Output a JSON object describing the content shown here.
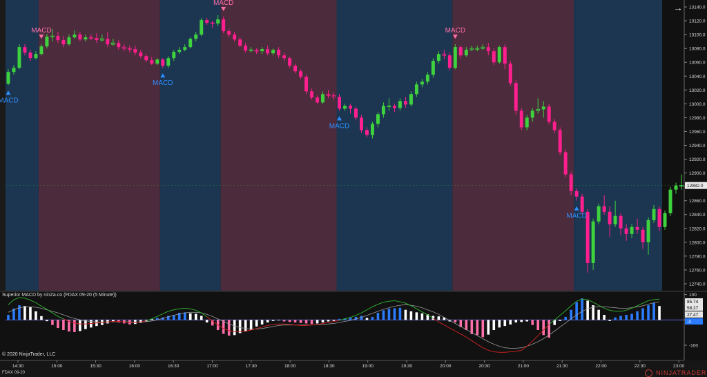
{
  "colors": {
    "background": "#111111",
    "bullish_band": "#1c3550",
    "bearish_band": "#4c2b3c",
    "up_candle": "#3ed33e",
    "down_candle": "#ff1f8e",
    "up_arrow": "#2f8fff",
    "down_arrow": "#ff6fa9",
    "hist_up_strong": "#2b7cff",
    "hist_up_weak": "#ffffff",
    "hist_down_strong": "#ff6fa9",
    "hist_down_weak": "#ffffff",
    "macd_line_up": "#2ea82e",
    "macd_line_down": "#c81f1f",
    "signal_line": "#9a9a9a",
    "zero_line": "#5b64c9"
  },
  "price_panel": {
    "price_labels": [
      "13140.0",
      "13120.0",
      "13100.0",
      "13080.0",
      "13060.0",
      "13040.0",
      "13020.0",
      "13000.0",
      "12980.0",
      "12960.0",
      "12940.0",
      "12920.0",
      "12900.0",
      "12880.0",
      "12860.0",
      "12840.0",
      "12820.0",
      "12800.0",
      "12780.0",
      "12760.0",
      "12740.0"
    ],
    "current_price": "12882.0",
    "signal_label": "MACD"
  },
  "indicator_panel": {
    "title": "Superior MACD by ninZa.co (FDAX 09-20 (5 Minute))",
    "value_labels": [
      "85.74",
      "58.27",
      "27.47",
      "-3"
    ],
    "axis_labels": [
      "100",
      "0",
      "-100"
    ]
  },
  "time_labels": [
    "14:30",
    "15:00",
    "15:30",
    "16:00",
    "16:30",
    "17:00",
    "17:30",
    "18:00",
    "18:30",
    "19:00",
    "19:30",
    "20:00",
    "20:30",
    "21:00",
    "21:30",
    "22:00",
    "22:30",
    "23:00"
  ],
  "copyright": "© 2020 NinjaTrader, LLC",
  "instrument": "FDAX 09-20",
  "brand": "NINJATRADER",
  "chart_data": {
    "type": "candlestick",
    "title": "",
    "instrument": "FDAX 09-20",
    "interval": "5 Minute",
    "x": [
      "14:30",
      "15:00",
      "15:30",
      "16:00",
      "16:30",
      "17:00",
      "17:30",
      "18:00",
      "18:30",
      "19:00",
      "19:30",
      "20:00",
      "20:30",
      "21:00",
      "21:30",
      "22:00",
      "22:30",
      "23:00"
    ],
    "ylim": [
      12730,
      13150
    ],
    "current_price": 12882.0,
    "candles": [
      [
        "13029",
        "13046",
        "13050",
        "13027"
      ],
      [
        "13046",
        "13052",
        "13056",
        "13042"
      ],
      [
        "13052",
        "13082",
        "13086",
        "13050"
      ],
      [
        "13082",
        "13074",
        "13086",
        "13070"
      ],
      [
        "13074",
        "13066",
        "13078",
        "13062"
      ],
      [
        "13066",
        "13072",
        "13076",
        "13064"
      ],
      [
        "13072",
        "13083",
        "13086",
        "13070"
      ],
      [
        "13083",
        "13097",
        "13101",
        "13080"
      ],
      [
        "13097",
        "13098",
        "13108",
        "13090"
      ],
      [
        "13098",
        "13092",
        "13104",
        "13088"
      ],
      [
        "13092",
        "13086",
        "13098",
        "13082"
      ],
      [
        "13086",
        "13096",
        "13100",
        "13084"
      ],
      [
        "13096",
        "13100",
        "13106",
        "13094"
      ],
      [
        "13100",
        "13093",
        "13104",
        "13090"
      ],
      [
        "13093",
        "13096",
        "13100",
        "13090"
      ],
      [
        "13096",
        "13095",
        "13100",
        "13092"
      ],
      [
        "13095",
        "13092",
        "13102",
        "13088"
      ],
      [
        "13092",
        "13094",
        "13100",
        "13090"
      ],
      [
        "13094",
        "13086",
        "13104",
        "13082"
      ],
      [
        "13086",
        "13088",
        "13094",
        "13084"
      ],
      [
        "13088",
        "13082",
        "13092",
        "13078"
      ],
      [
        "13082",
        "13080",
        "13086",
        "13076"
      ],
      [
        "13080",
        "13079",
        "13084",
        "13074"
      ],
      [
        "13079",
        "13074",
        "13084",
        "13070"
      ],
      [
        "13074",
        "13069",
        "13078",
        "13066"
      ],
      [
        "13069",
        "13063",
        "13072",
        "13060"
      ],
      [
        "13063",
        "13058",
        "13068",
        "13056"
      ],
      [
        "13058",
        "13064",
        "13066",
        "13056"
      ],
      [
        "13064",
        "13055",
        "13066",
        "13052"
      ],
      [
        "13055",
        "13066",
        "13069",
        "13052"
      ],
      [
        "13066",
        "13075",
        "13078",
        "13062"
      ],
      [
        "13075",
        "13078",
        "13082",
        "13072"
      ],
      [
        "13078",
        "13082",
        "13086",
        "13076"
      ],
      [
        "13082",
        "13094",
        "13096",
        "13080"
      ],
      [
        "13094",
        "13100",
        "13104",
        "13090"
      ],
      [
        "13100",
        "13121",
        "13124",
        "13098"
      ],
      [
        "13121",
        "13117",
        "13124",
        "13114"
      ],
      [
        "13117",
        "13116",
        "13120",
        "13110"
      ],
      [
        "13116",
        "13122",
        "13128",
        "13112"
      ],
      [
        "13122",
        "13105",
        "13126",
        "13102"
      ],
      [
        "13105",
        "13100",
        "13108",
        "13096"
      ],
      [
        "13100",
        "13093",
        "13104",
        "13090"
      ],
      [
        "13093",
        "13084",
        "13096",
        "13082"
      ],
      [
        "13084",
        "13077",
        "13088",
        "13074"
      ],
      [
        "13077",
        "13078",
        "13082",
        "13074"
      ],
      [
        "13078",
        "13076",
        "13080",
        "13072"
      ],
      [
        "13076",
        "13079",
        "13082",
        "13072"
      ],
      [
        "13079",
        "13073",
        "13084",
        "13070"
      ],
      [
        "13073",
        "13078",
        "13080",
        "13070"
      ],
      [
        "13078",
        "13070",
        "13082",
        "13066"
      ],
      [
        "13070",
        "13066",
        "13074",
        "13062"
      ],
      [
        "13066",
        "13055",
        "13068",
        "13052"
      ],
      [
        "13055",
        "13047",
        "13058",
        "13044"
      ],
      [
        "13047",
        "13039",
        "13050",
        "13036"
      ],
      [
        "13039",
        "13018",
        "13042",
        "13014"
      ],
      [
        "13018",
        "13009",
        "13022",
        "13006"
      ],
      [
        "13009",
        "13002",
        "13012",
        "13000"
      ],
      [
        "13002",
        "13014",
        "13018",
        "13000"
      ],
      [
        "13014",
        "13012",
        "13020",
        "13008"
      ],
      [
        "13012",
        "13010",
        "13016",
        "13006"
      ],
      [
        "13010",
        "12993",
        "13014",
        "12990"
      ],
      [
        "12993",
        "12997",
        "13000",
        "12990"
      ],
      [
        "12997",
        "12993",
        "13000",
        "12986"
      ],
      [
        "12993",
        "12980",
        "12996",
        "12976"
      ],
      [
        "12980",
        "12962",
        "12984",
        "12958"
      ],
      [
        "12962",
        "12955",
        "12966",
        "12952"
      ],
      [
        "12955",
        "12971",
        "12974",
        "12950"
      ],
      [
        "12971",
        "12985",
        "12988",
        "12966"
      ],
      [
        "12985",
        "12997",
        "13002",
        "12980"
      ],
      [
        "12997",
        "12997",
        "13008",
        "12990"
      ],
      [
        "12997",
        "12994",
        "13000",
        "12988"
      ],
      [
        "12994",
        "13004",
        "13008",
        "12990"
      ],
      [
        "13004",
        "12999",
        "13010",
        "12994"
      ],
      [
        "12999",
        "13014",
        "13018",
        "12996"
      ],
      [
        "13014",
        "13028",
        "13032",
        "13010"
      ],
      [
        "13028",
        "13032",
        "13036",
        "13024"
      ],
      [
        "13032",
        "13042",
        "13046",
        "13028"
      ],
      [
        "13042",
        "13062",
        "13066",
        "13038"
      ],
      [
        "13062",
        "13072",
        "13076",
        "13058"
      ],
      [
        "13072",
        "13070",
        "13078",
        "13064"
      ],
      [
        "13070",
        "13052",
        "13074",
        "13048"
      ],
      [
        "13052",
        "13082",
        "13086",
        "13050"
      ],
      [
        "13082",
        "13070",
        "13084",
        "13066"
      ],
      [
        "13070",
        "13078",
        "13082",
        "13068"
      ],
      [
        "13078",
        "13080",
        "13084",
        "13076"
      ],
      [
        "13080",
        "13080",
        "13084",
        "13076"
      ],
      [
        "13080",
        "13082",
        "13086",
        "13078"
      ],
      [
        "13082",
        "13076",
        "13088",
        "13070"
      ],
      [
        "13076",
        "13060",
        "13080",
        "13056"
      ],
      [
        "13060",
        "13082",
        "13084",
        "13058"
      ],
      [
        "13082",
        "13058",
        "13086",
        "13050"
      ],
      [
        "13058",
        "13030",
        "13062",
        "13026"
      ],
      [
        "13030",
        "12990",
        "13034",
        "12984"
      ],
      [
        "12990",
        "12966",
        "12994",
        "12962"
      ],
      [
        "12966",
        "12980",
        "12984",
        "12962"
      ],
      [
        "12980",
        "12990",
        "12994",
        "12974"
      ],
      [
        "12990",
        "12992",
        "13008",
        "12986"
      ],
      [
        "12992",
        "12996",
        "13004",
        "12980"
      ],
      [
        "12996",
        "12974",
        "13000",
        "12970"
      ],
      [
        "12974",
        "12962",
        "12978",
        "12958"
      ],
      [
        "12962",
        "12930",
        "12966",
        "12926"
      ],
      [
        "12930",
        "12898",
        "12934",
        "12894"
      ],
      [
        "12898",
        "12874",
        "12902",
        "12868"
      ],
      [
        "12874",
        "12866",
        "12878",
        "12860"
      ],
      [
        "12866",
        "12844",
        "12870",
        "12840"
      ],
      [
        "12844",
        "12770",
        "12848",
        "12756"
      ],
      [
        "12770",
        "12830",
        "12834",
        "12760"
      ],
      [
        "12830",
        "12852",
        "12856",
        "12826"
      ],
      [
        "12852",
        "12844",
        "12868",
        "12840"
      ],
      [
        "12844",
        "12826",
        "12852",
        "12808"
      ],
      [
        "12826",
        "12838",
        "12860",
        "12822"
      ],
      [
        "12838",
        "12820",
        "12842",
        "12810"
      ],
      [
        "12820",
        "12812",
        "12826",
        "12802"
      ],
      [
        "12812",
        "12822",
        "12826",
        "12806"
      ],
      [
        "12822",
        "12818",
        "12834",
        "12812"
      ],
      [
        "12818",
        "12800",
        "12822",
        "12790"
      ],
      [
        "12800",
        "12832",
        "12836",
        "12782"
      ],
      [
        "12832",
        "12848",
        "12854",
        "12828"
      ],
      [
        "12848",
        "12822",
        "12852",
        "12816"
      ],
      [
        "12822",
        "12842",
        "12846",
        "12818"
      ],
      [
        "12842",
        "12876",
        "12880",
        "12838"
      ],
      [
        "12876",
        "12882",
        "12886",
        "12870"
      ],
      [
        "12882",
        "12882",
        "12898",
        "12876"
      ]
    ],
    "signals": [
      {
        "type": "buy",
        "index": 0,
        "label": "MACD"
      },
      {
        "type": "sell",
        "index": 6,
        "label": "MACD"
      },
      {
        "type": "buy",
        "index": 28,
        "label": "MACD"
      },
      {
        "type": "sell",
        "index": 39,
        "label": "MACD"
      },
      {
        "type": "buy",
        "index": 60,
        "label": "MACD"
      },
      {
        "type": "sell",
        "index": 81,
        "label": "MACD"
      },
      {
        "type": "buy",
        "index": 103,
        "label": "MACD"
      }
    ],
    "trend_bands": [
      {
        "trend": "up",
        "from_index": 0,
        "to_index": 5
      },
      {
        "trend": "down",
        "from_index": 6,
        "to_index": 27
      },
      {
        "trend": "up",
        "from_index": 28,
        "to_index": 38
      },
      {
        "trend": "down",
        "from_index": 39,
        "to_index": 59
      },
      {
        "trend": "up",
        "from_index": 60,
        "to_index": 80
      },
      {
        "trend": "down",
        "from_index": 81,
        "to_index": 102
      },
      {
        "trend": "up",
        "from_index": 103,
        "to_index": 118
      }
    ],
    "indicator": {
      "name": "Superior MACD",
      "ylim": [
        -160,
        110
      ],
      "current_values": [
        85.74,
        58.27,
        27.47,
        -3
      ],
      "histogram": [
        20,
        45,
        58,
        55,
        50,
        34,
        15,
        -5,
        -20,
        -32,
        -40,
        -46,
        -48,
        -44,
        -36,
        -30,
        -24,
        -20,
        -14,
        -8,
        -10,
        -14,
        -18,
        -16,
        -12,
        -6,
        4,
        8,
        10,
        16,
        20,
        28,
        30,
        26,
        24,
        16,
        -10,
        -22,
        -40,
        -55,
        -62,
        -60,
        -52,
        -46,
        -40,
        -26,
        -18,
        -10,
        -4,
        0,
        -6,
        -8,
        -10,
        -12,
        -14,
        -16,
        -14,
        -10,
        -6,
        -4,
        4,
        6,
        10,
        12,
        16,
        8,
        12,
        28,
        38,
        44,
        46,
        48,
        40,
        34,
        30,
        26,
        22,
        16,
        14,
        10,
        -6,
        -10,
        -28,
        -40,
        -56,
        -60,
        -68,
        -58,
        -40,
        -30,
        -24,
        -18,
        -10,
        -8,
        -6,
        -20,
        -40,
        -60,
        -70,
        -20,
        -4,
        12,
        40,
        70,
        85,
        76,
        58,
        40,
        20,
        -4,
        10,
        16,
        20,
        24,
        34,
        46,
        58,
        68,
        55
      ],
      "macd_line": [
        60,
        80,
        88,
        86,
        78,
        68,
        54,
        42,
        28,
        14,
        4,
        -6,
        -12,
        -16,
        -16,
        -14,
        -12,
        -10,
        -8,
        -6,
        -6,
        -8,
        -10,
        -10,
        -8,
        -4,
        4,
        14,
        24,
        34,
        40,
        44,
        46,
        44,
        38,
        28,
        12,
        -4,
        -20,
        -34,
        -42,
        -46,
        -46,
        -44,
        -40,
        -34,
        -28,
        -22,
        -18,
        -16,
        -16,
        -18,
        -20,
        -22,
        -22,
        -20,
        -18,
        -14,
        -10,
        -6,
        -2,
        4,
        10,
        18,
        28,
        40,
        52,
        62,
        70,
        74,
        76,
        72,
        66,
        56,
        44,
        32,
        20,
        6,
        -8,
        -20,
        -32,
        -44,
        -56,
        -68,
        -82,
        -96,
        -110,
        -120,
        -126,
        -128,
        -128,
        -126,
        -124,
        -120,
        -104,
        -84,
        -62,
        -40,
        -18,
        0,
        18,
        36,
        56,
        74,
        82,
        80,
        70,
        58,
        46,
        38,
        34,
        34,
        38,
        46,
        56,
        66,
        76,
        80,
        82
      ],
      "signal_line": [
        30,
        40,
        48,
        52,
        52,
        50,
        46,
        40,
        34,
        28,
        20,
        12,
        6,
        0,
        -4,
        -6,
        -8,
        -8,
        -8,
        -7,
        -7,
        -7,
        -8,
        -8,
        -8,
        -7,
        -4,
        0,
        6,
        12,
        18,
        24,
        28,
        30,
        30,
        28,
        22,
        14,
        4,
        -6,
        -16,
        -24,
        -30,
        -34,
        -36,
        -36,
        -34,
        -30,
        -26,
        -22,
        -20,
        -20,
        -20,
        -20,
        -20,
        -20,
        -19,
        -18,
        -16,
        -14,
        -10,
        -6,
        -2,
        4,
        10,
        18,
        26,
        34,
        42,
        48,
        54,
        58,
        60,
        58,
        54,
        48,
        40,
        32,
        22,
        10,
        -2,
        -14,
        -26,
        -38,
        -50,
        -62,
        -74,
        -86,
        -96,
        -104,
        -110,
        -112,
        -112,
        -110,
        -104,
        -96,
        -86,
        -74,
        -60,
        -44,
        -28,
        -12,
        4,
        20,
        34,
        44,
        50,
        52,
        52,
        50,
        48,
        46,
        46,
        48,
        52,
        56,
        62,
        68,
        72
      ]
    }
  }
}
